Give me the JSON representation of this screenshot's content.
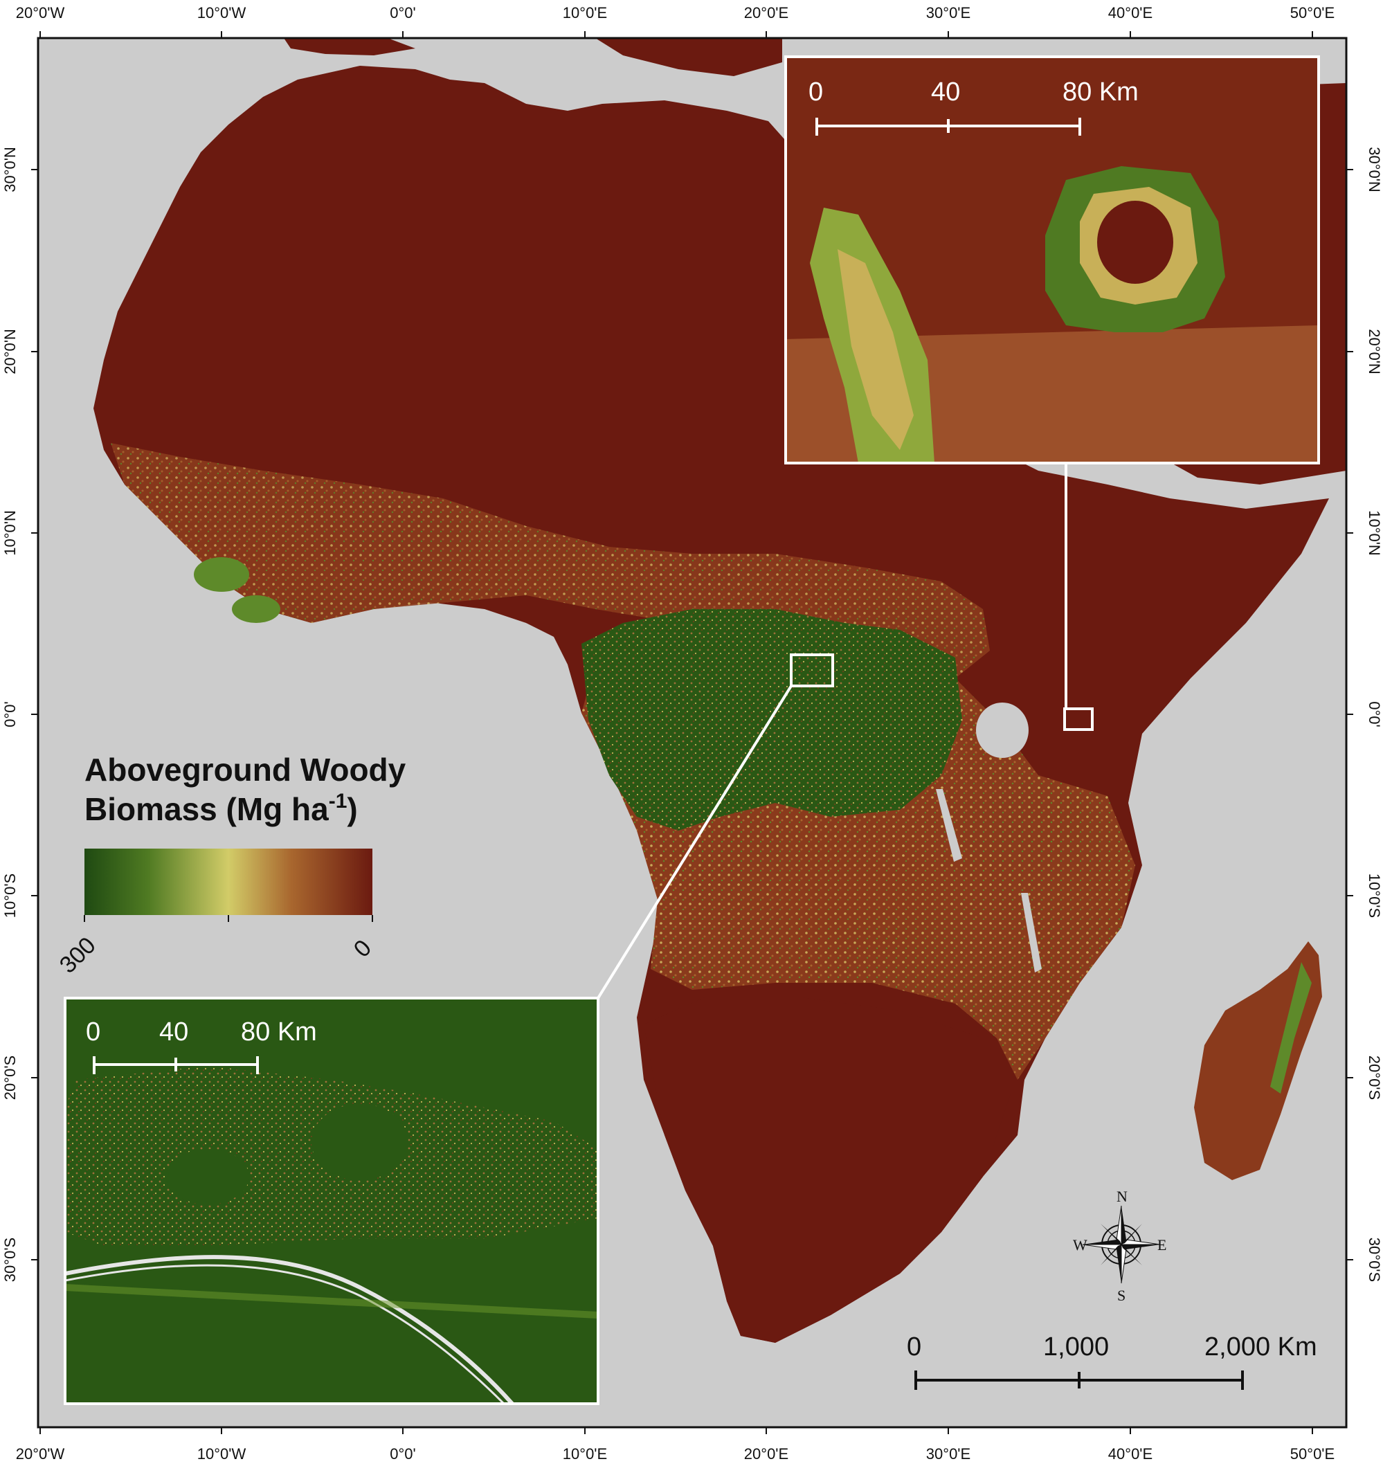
{
  "legend": {
    "title_line1": "Aboveground Woody",
    "title_line2_prefix": "Biomass (Mg ha",
    "title_superscript": "-1",
    "title_line2_suffix": ")",
    "min_label": "300",
    "max_label": "0",
    "colors": [
      "#1f4a12",
      "#3a6a1c",
      "#8fa83c",
      "#d2cc68",
      "#b88a40",
      "#8a3a1c",
      "#6b1a10"
    ]
  },
  "longitude_labels": [
    "20°0'W",
    "10°0'W",
    "0°0'",
    "10°0'E",
    "20°0'E",
    "30°0'E",
    "40°0'E",
    "50°0'E"
  ],
  "latitude_labels": [
    "30°0'N",
    "20°0'N",
    "10°0'N",
    "0°0'",
    "10°0'S",
    "20°0'S",
    "30°0'S"
  ],
  "inset_top": {
    "scale_labels": [
      "0",
      "40",
      "80 Km"
    ]
  },
  "inset_bottom": {
    "scale_labels": [
      "0",
      "40",
      "80 Km"
    ]
  },
  "main_scale": {
    "labels": [
      "0",
      "1,000",
      "2,000 Km"
    ]
  },
  "compass": {
    "n": "N",
    "s": "S",
    "e": "E",
    "w": "W"
  },
  "colors": {
    "ocean": "#cccccc",
    "desert": "#6b1a10",
    "savanna": "#8a3a1c",
    "woodland": "#c8a858",
    "forest": "#2c5a16",
    "frame": "#ffffff"
  }
}
